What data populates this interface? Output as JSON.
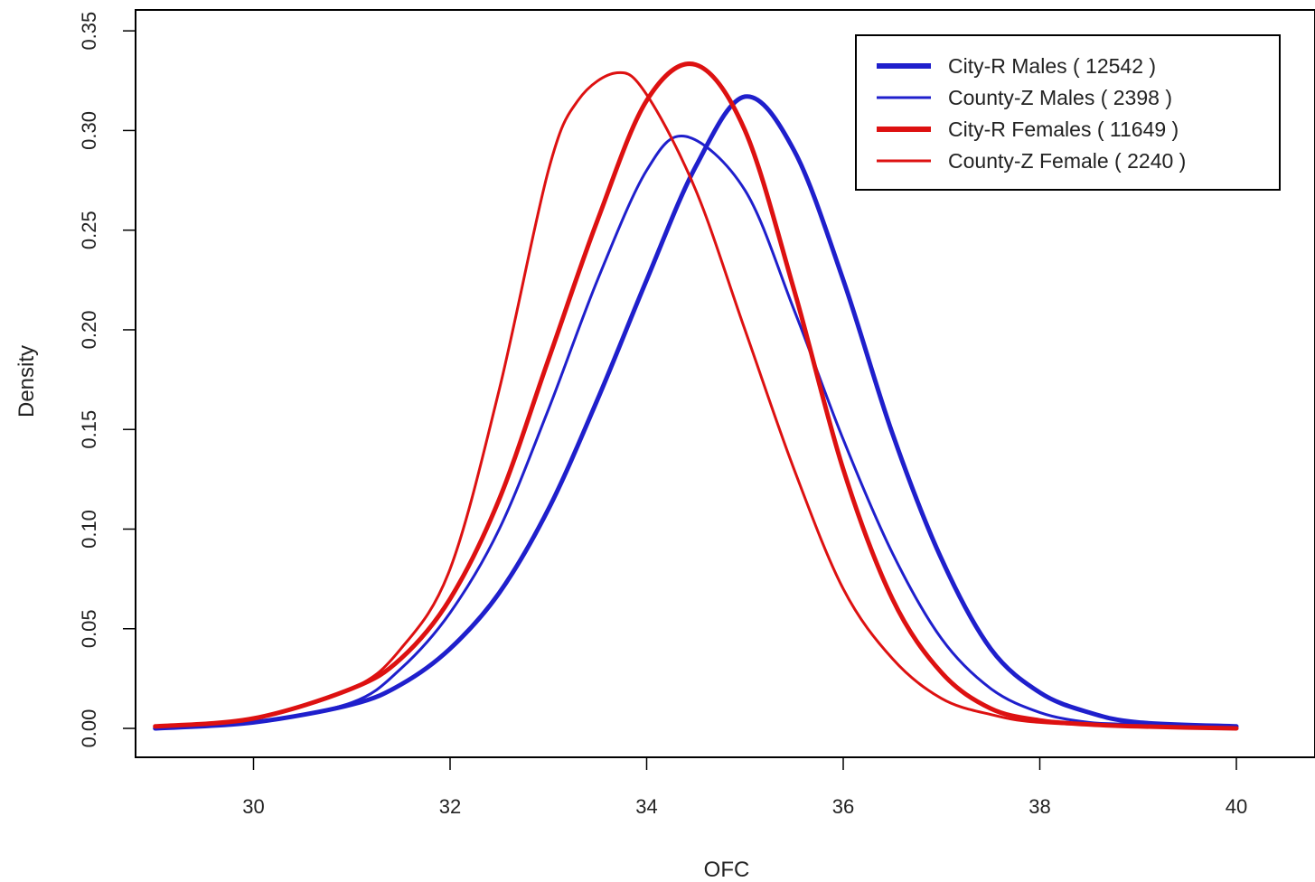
{
  "chart_data": {
    "type": "line",
    "title": "",
    "xlabel": "OFC",
    "ylabel": "Density",
    "xlim": [
      28.8,
      40.8
    ],
    "ylim": [
      -0.0145,
      0.3605
    ],
    "x_ticks": [
      30,
      32,
      34,
      36,
      38,
      40
    ],
    "x_tick_labels": [
      "30",
      "32",
      "34",
      "36",
      "38",
      "40"
    ],
    "y_ticks": [
      0,
      0.05,
      0.1,
      0.15,
      0.2,
      0.25,
      0.3,
      0.35
    ],
    "y_tick_labels": [
      "0.00",
      "0.05",
      "0.10",
      "0.15",
      "0.20",
      "0.25",
      "0.30",
      "0.35"
    ],
    "grid": false,
    "legend_position": "top-right",
    "series": [
      {
        "name": "City-R Males ( 12542 )",
        "color": "#1f1fcc",
        "line_width": "thick",
        "x": [
          29,
          30,
          31,
          31.5,
          32,
          32.5,
          33,
          33.5,
          34,
          34.5,
          35,
          35.5,
          36,
          36.5,
          37,
          37.5,
          38,
          38.5,
          39,
          40
        ],
        "y": [
          0.0,
          0.003,
          0.012,
          0.022,
          0.04,
          0.068,
          0.11,
          0.165,
          0.225,
          0.282,
          0.317,
          0.29,
          0.225,
          0.148,
          0.085,
          0.04,
          0.018,
          0.008,
          0.003,
          0.001
        ]
      },
      {
        "name": "County-Z Males ( 2398 )",
        "color": "#1f1fcc",
        "line_width": "thin",
        "x": [
          29,
          30,
          31,
          31.5,
          32,
          32.5,
          33,
          33.5,
          34,
          34.4,
          35,
          35.5,
          36,
          36.5,
          37,
          37.5,
          38,
          38.5,
          39,
          40
        ],
        "y": [
          0.0,
          0.003,
          0.013,
          0.03,
          0.058,
          0.1,
          0.16,
          0.225,
          0.28,
          0.297,
          0.27,
          0.21,
          0.145,
          0.088,
          0.045,
          0.02,
          0.008,
          0.003,
          0.002,
          0.0
        ]
      },
      {
        "name": "City-R Females ( 11649 )",
        "color": "#dd1111",
        "line_width": "thick",
        "x": [
          29,
          30,
          31,
          31.5,
          32,
          32.5,
          33,
          33.5,
          34,
          34.5,
          35,
          35.5,
          36,
          36.5,
          37,
          37.5,
          38,
          38.5,
          39,
          40
        ],
        "y": [
          0.001,
          0.005,
          0.02,
          0.035,
          0.065,
          0.115,
          0.185,
          0.255,
          0.315,
          0.333,
          0.3,
          0.22,
          0.13,
          0.065,
          0.028,
          0.01,
          0.004,
          0.002,
          0.001,
          0.0
        ]
      },
      {
        "name": "County-Z Female ( 2240 )",
        "color": "#dd1111",
        "line_width": "thin",
        "x": [
          29,
          30,
          31,
          31.5,
          32,
          32.5,
          33,
          33.3,
          33.7,
          34,
          34.5,
          35,
          35.5,
          36,
          36.5,
          37,
          37.5,
          38,
          39,
          40
        ],
        "y": [
          0.001,
          0.005,
          0.02,
          0.04,
          0.08,
          0.17,
          0.28,
          0.315,
          0.329,
          0.318,
          0.27,
          0.2,
          0.13,
          0.07,
          0.035,
          0.015,
          0.007,
          0.003,
          0.001,
          0.0
        ]
      }
    ]
  }
}
